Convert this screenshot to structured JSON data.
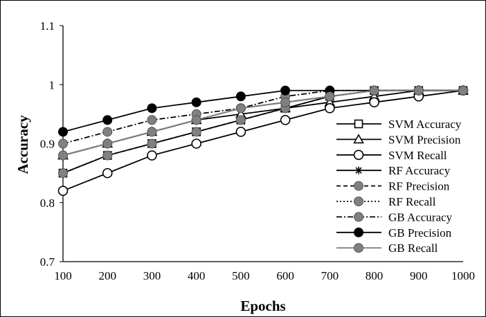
{
  "chart_data": {
    "type": "line",
    "xlabel": "Epochs",
    "ylabel": "Accuracy",
    "x": [
      100,
      200,
      300,
      400,
      500,
      600,
      700,
      800,
      900,
      1000
    ],
    "ylim": [
      0.7,
      1.1
    ],
    "yticks": [
      "0.7",
      "0.8",
      "0.9",
      "1",
      "1.1"
    ],
    "grid": false,
    "legend_position": "right",
    "series": [
      {
        "name": "SVM Accuracy",
        "marker": "square",
        "line": "solid",
        "color": "#000000",
        "values": [
          0.85,
          0.88,
          0.9,
          0.92,
          0.94,
          0.96,
          0.98,
          0.99,
          0.99,
          0.99
        ]
      },
      {
        "name": "SVM Precision",
        "marker": "triangle",
        "line": "solid",
        "color": "#000000",
        "values": [
          0.88,
          0.9,
          0.92,
          0.94,
          0.95,
          0.96,
          0.97,
          0.98,
          0.99,
          0.99
        ]
      },
      {
        "name": "SVM Recall",
        "marker": "circle-open",
        "line": "solid",
        "color": "#000000",
        "values": [
          0.82,
          0.85,
          0.88,
          0.9,
          0.92,
          0.94,
          0.96,
          0.97,
          0.98,
          0.99
        ]
      },
      {
        "name": "RF Accuracy",
        "marker": "star",
        "line": "solid",
        "color": "#000000",
        "values": [
          0.88,
          0.9,
          0.92,
          0.94,
          0.96,
          0.97,
          0.98,
          0.99,
          0.99,
          0.99
        ]
      },
      {
        "name": "RF Precision",
        "marker": "circle-gray",
        "line": "dashed",
        "color": "#000000",
        "values": [
          0.85,
          0.88,
          0.9,
          0.92,
          0.94,
          0.96,
          0.98,
          0.99,
          0.99,
          0.99
        ]
      },
      {
        "name": "RF Recall",
        "marker": "circle-gray",
        "line": "dotted",
        "color": "#000000",
        "values": [
          0.88,
          0.9,
          0.92,
          0.94,
          0.96,
          0.97,
          0.98,
          0.99,
          0.99,
          0.99
        ]
      },
      {
        "name": "GB Accuracy",
        "marker": "circle-gray",
        "line": "dashdot",
        "color": "#000000",
        "values": [
          0.9,
          0.92,
          0.94,
          0.95,
          0.96,
          0.98,
          0.99,
          0.99,
          0.99,
          0.99
        ]
      },
      {
        "name": "GB Precision",
        "marker": "circle-black",
        "line": "solid",
        "color": "#000000",
        "values": [
          0.92,
          0.94,
          0.96,
          0.97,
          0.98,
          0.99,
          0.99,
          0.99,
          0.99,
          0.99
        ]
      },
      {
        "name": "GB Recall",
        "marker": "circle-gray",
        "line": "solid",
        "color": "#808080",
        "values": [
          0.88,
          0.9,
          0.92,
          0.94,
          0.96,
          0.97,
          0.98,
          0.99,
          0.99,
          0.99
        ]
      }
    ]
  }
}
